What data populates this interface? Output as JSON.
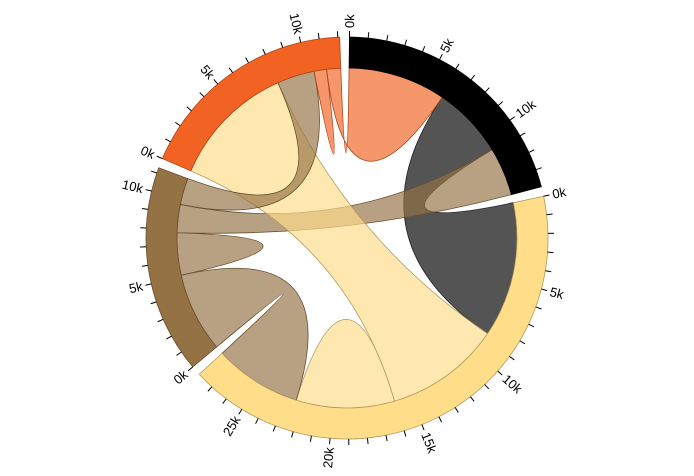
{
  "chart_data": {
    "type": "chord",
    "title": "",
    "unit_suffix": "k",
    "groups": [
      {
        "color": "#000000"
      },
      {
        "color": "#FFDD89"
      },
      {
        "color": "#957244"
      },
      {
        "color": "#F26223"
      }
    ],
    "matrix": [
      [
        0,
        4.6,
        3.1,
        6.25
      ],
      [
        8.65,
        6.3,
        5.6,
        7.4
      ],
      [
        1.8,
        5.1,
        2.7,
        1.7
      ],
      [
        0.9,
        8.0,
        2.4,
        0.8
      ]
    ],
    "major_tick_step": 5,
    "minor_tick_step": 1,
    "ribbon_opacity": 0.67
  }
}
